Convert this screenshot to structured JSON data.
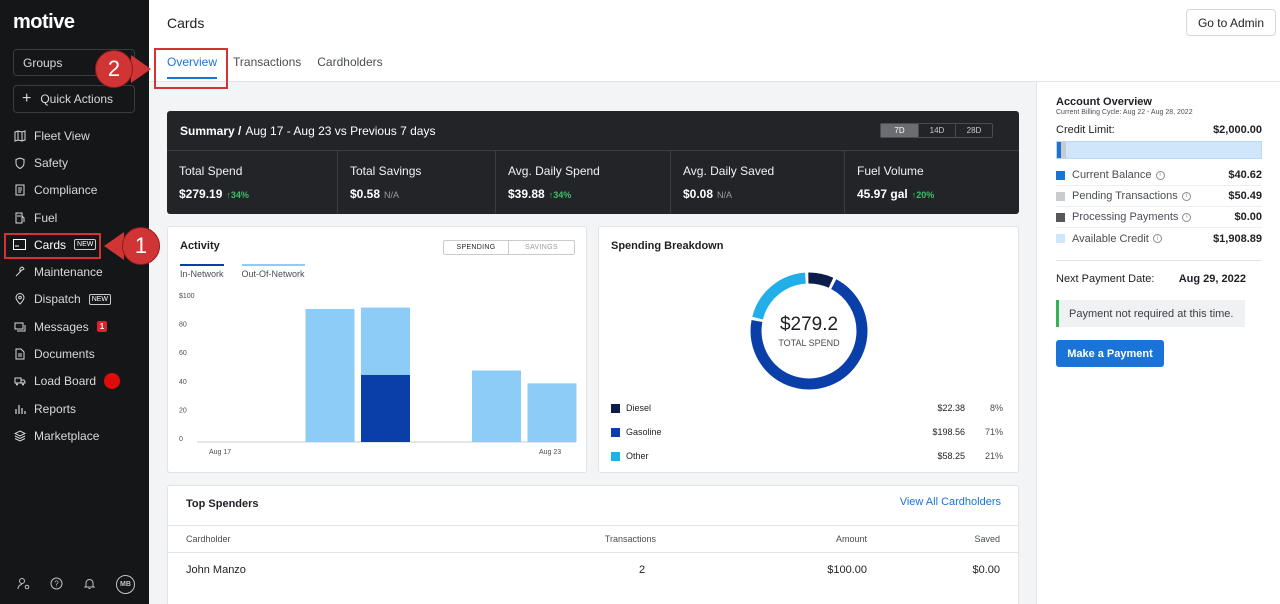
{
  "sidebar": {
    "logo": "motive",
    "groups_label": "Groups",
    "quick_actions_label": "Quick Actions",
    "items": [
      {
        "label": "Fleet View"
      },
      {
        "label": "Safety"
      },
      {
        "label": "Compliance"
      },
      {
        "label": "Fuel"
      },
      {
        "label": "Cards",
        "badge": "NEW"
      },
      {
        "label": "Maintenance"
      },
      {
        "label": "Dispatch",
        "badge": "NEW"
      },
      {
        "label": "Messages",
        "count": "1"
      },
      {
        "label": "Documents"
      },
      {
        "label": "Load Board"
      },
      {
        "label": "Reports"
      },
      {
        "label": "Marketplace"
      }
    ],
    "user_initials": "MB"
  },
  "annotations": {
    "callout_1": "1",
    "callout_2": "2"
  },
  "header": {
    "title": "Cards",
    "admin_button": "Go to Admin",
    "tabs": [
      {
        "label": "Overview"
      },
      {
        "label": "Transactions"
      },
      {
        "label": "Cardholders"
      }
    ]
  },
  "summary": {
    "title_bold": "Summary /",
    "title_rest": "Aug 17 - Aug 23 vs Previous 7 days",
    "ranges": [
      "7D",
      "14D",
      "28D"
    ],
    "metrics": [
      {
        "label": "Total Spend",
        "value": "$279.19",
        "change": "↑34%"
      },
      {
        "label": "Total Savings",
        "value": "$0.58",
        "change": "N/A"
      },
      {
        "label": "Avg. Daily Spend",
        "value": "$39.88",
        "change": "↑34%"
      },
      {
        "label": "Avg. Daily Saved",
        "value": "$0.08",
        "change": "N/A"
      },
      {
        "label": "Fuel Volume",
        "value": "45.97 gal",
        "change": "↑20%"
      }
    ]
  },
  "activity": {
    "title": "Activity",
    "toggle": [
      "SPENDING",
      "SAVINGS"
    ],
    "legend": [
      "In-Network",
      "Out-Of-Network"
    ]
  },
  "chart_data": {
    "type": "bar",
    "stacked": true,
    "categories": [
      "Aug 17",
      "Aug 18",
      "Aug 19",
      "Aug 20",
      "Aug 21",
      "Aug 22",
      "Aug 23"
    ],
    "x_tick_labels": [
      "Aug 17",
      "Aug 23"
    ],
    "y_tick_labels": [
      "$100",
      "80",
      "60",
      "40",
      "20",
      "0"
    ],
    "ylim": [
      0,
      100
    ],
    "series": [
      {
        "name": "In-Network",
        "color": "#0a3ea8",
        "values": [
          0,
          0,
          47,
          0,
          0,
          0,
          0
        ]
      },
      {
        "name": "Out-Of-Network",
        "color": "#8cccf7",
        "values": [
          0,
          93,
          47,
          0,
          50,
          41,
          0
        ]
      }
    ]
  },
  "breakdown": {
    "title": "Spending Breakdown",
    "total": "$279.2",
    "total_label": "TOTAL SPEND",
    "items": [
      {
        "name": "Diesel",
        "amount": "$22.38",
        "pct": "8%",
        "value": 22.38,
        "color": "#0b1d48"
      },
      {
        "name": "Gasoline",
        "amount": "$198.56",
        "pct": "71%",
        "value": 198.56,
        "color": "#0a3ea8"
      },
      {
        "name": "Other",
        "amount": "$58.25",
        "pct": "21%",
        "value": 58.25,
        "color": "#22aee8"
      }
    ]
  },
  "top_spenders": {
    "title": "Top Spenders",
    "link": "View All Cardholders",
    "headers": [
      "Cardholder",
      "Transactions",
      "Amount",
      "Saved"
    ],
    "rows": [
      {
        "name": "John Manzo",
        "transactions": "2",
        "amount": "$100.00",
        "saved": "$0.00"
      }
    ]
  },
  "account": {
    "title": "Account Overview",
    "subtitle": "Current Billing Cycle: Aug 22 - Aug 28, 2022",
    "limit_label": "Credit Limit:",
    "limit_value": "$2,000.00",
    "lines": [
      {
        "label": "Current Balance",
        "value": "$40.62",
        "color": "#1a73d9"
      },
      {
        "label": "Pending Transactions",
        "value": "$50.49",
        "color": "#c9cbd0"
      },
      {
        "label": "Processing Payments",
        "value": "$0.00",
        "color": "#55575c"
      },
      {
        "label": "Available Credit",
        "value": "$1,908.89",
        "color": "#cfe6fb"
      }
    ],
    "next_label": "Next Payment Date:",
    "next_value": "Aug 29, 2022",
    "note": "Payment not required at this time.",
    "pay_button": "Make a Payment"
  }
}
